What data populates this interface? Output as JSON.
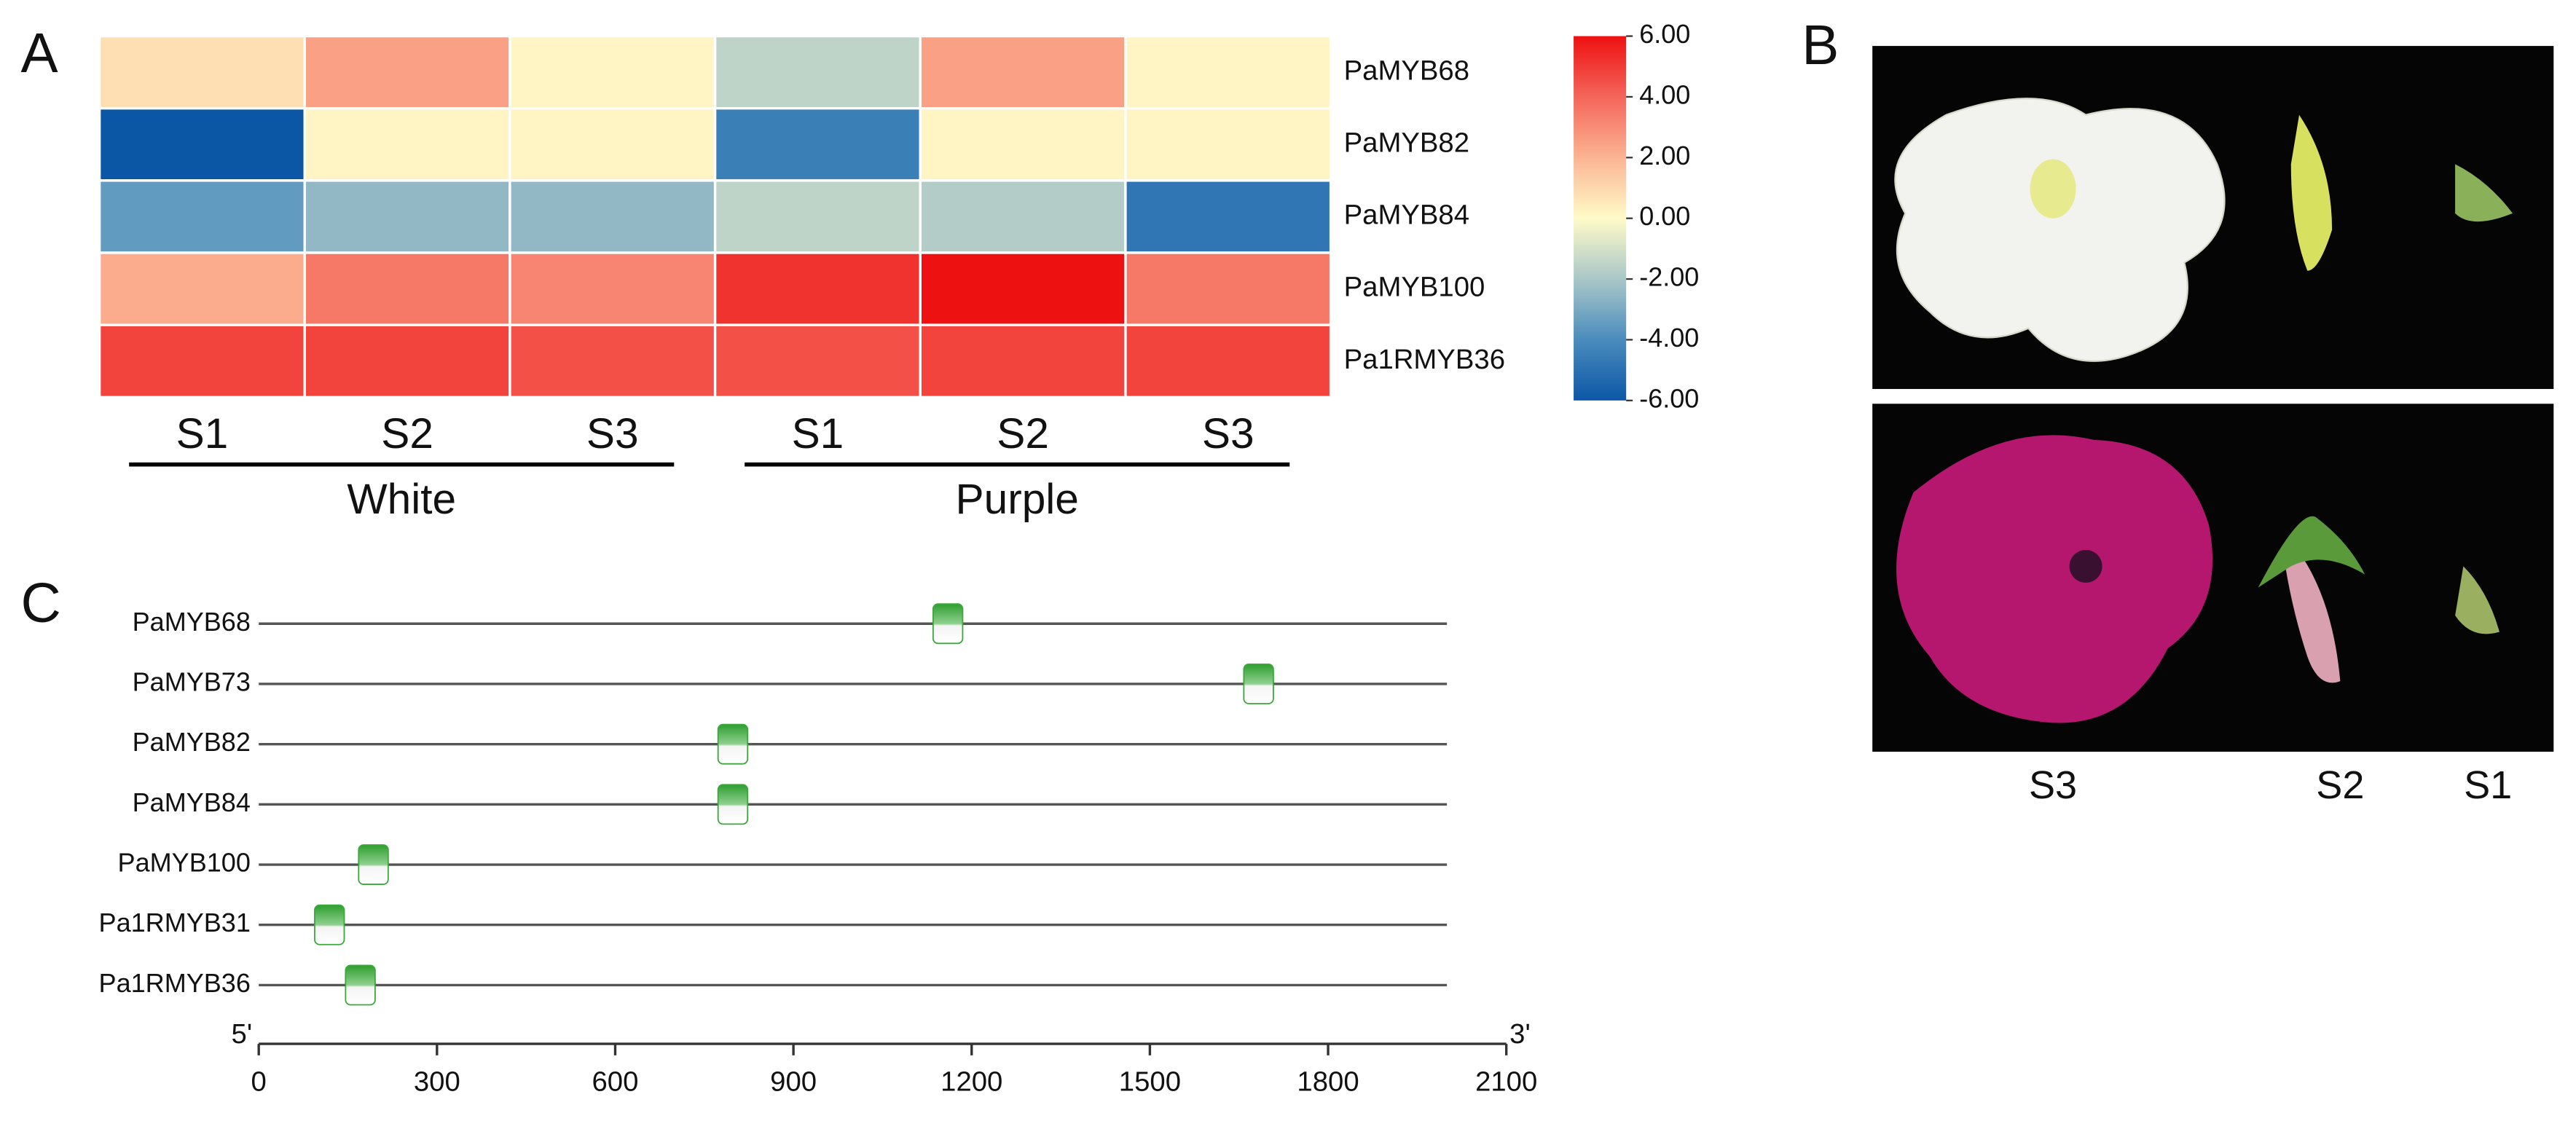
{
  "chart_data": [
    {
      "type": "heatmap",
      "panel_label": "A",
      "rows": [
        "PaMYB68",
        "PaMYB82",
        "PaMYB84",
        "PaMYB100",
        "Pa1RMYB36"
      ],
      "columns": [
        "S1",
        "S2",
        "S3",
        "S1",
        "S2",
        "S3"
      ],
      "groups": [
        {
          "name": "White",
          "size": 3
        },
        {
          "name": "Purple",
          "size": 3
        }
      ],
      "values": [
        [
          0.8,
          2.5,
          0.2,
          -1.5,
          2.5,
          0.2
        ],
        [
          -6,
          0.2,
          0.2,
          -4.5,
          0.2,
          0.2
        ],
        [
          -3.5,
          -2.5,
          -2.5,
          -1.5,
          -1.8,
          -4.8
        ],
        [
          2.2,
          3.5,
          3.2,
          5.2,
          6,
          3.5
        ],
        [
          4.8,
          4.8,
          4.5,
          4.5,
          4.8,
          4.8
        ]
      ],
      "colorscale": [
        {
          "value": -6,
          "color": "#0c56a6"
        },
        {
          "value": -4,
          "color": "#4a8cbd"
        },
        {
          "value": -2,
          "color": "#aac7c8"
        },
        {
          "value": 0,
          "color": "#fffbc8"
        },
        {
          "value": 2,
          "color": "#fbb493"
        },
        {
          "value": 4,
          "color": "#f4655a"
        },
        {
          "value": 6,
          "color": "#ee1111"
        }
      ],
      "clim": [
        -6,
        6
      ],
      "cticks": [
        {
          "value": 6,
          "label": "6.00"
        },
        {
          "value": 4,
          "label": "4.00"
        },
        {
          "value": 2,
          "label": "2.00"
        },
        {
          "value": 0,
          "label": "0.00"
        },
        {
          "value": -2,
          "label": "-2.00"
        },
        {
          "value": -4,
          "label": "-4.00"
        },
        {
          "value": -6,
          "label": "-6.00"
        }
      ]
    },
    {
      "type": "motif",
      "panel_label": "C",
      "categories": [
        "PaMYB68",
        "PaMYB73",
        "PaMYB82",
        "PaMYB84",
        "PaMYB100",
        "Pa1RMYB31",
        "Pa1RMYB36"
      ],
      "values": [
        1160,
        1683,
        798,
        798,
        193,
        119,
        171
      ],
      "sequence_length": 2000,
      "color": "#3aa83a",
      "xlim": [
        0,
        2100
      ],
      "xticks": [
        0,
        300,
        600,
        900,
        1200,
        1500,
        1800,
        2100
      ],
      "start_label": "5'",
      "end_label": "3'"
    }
  ],
  "panel_b": {
    "panel_label": "B",
    "labels": [
      "S3",
      "S2",
      "S1"
    ]
  }
}
